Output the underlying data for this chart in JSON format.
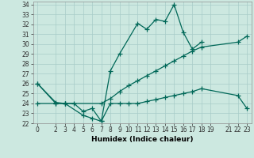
{
  "xlabel": "Humidex (Indice chaleur)",
  "bg_color": "#cce8e0",
  "grid_color": "#a8ccc8",
  "line_color": "#006858",
  "xlim": [
    -0.5,
    23.5
  ],
  "ylim": [
    22,
    34.3
  ],
  "yticks": [
    22,
    23,
    24,
    25,
    26,
    27,
    28,
    29,
    30,
    31,
    32,
    33,
    34
  ],
  "xticks": [
    0,
    2,
    3,
    4,
    5,
    6,
    7,
    8,
    9,
    10,
    11,
    12,
    13,
    14,
    15,
    16,
    17,
    18,
    19,
    21,
    22,
    23
  ],
  "line1_x": [
    0,
    2,
    3,
    5,
    6,
    7,
    8,
    9,
    11,
    12,
    13,
    14,
    15,
    16,
    17,
    18
  ],
  "line1_y": [
    26.0,
    24.0,
    24.0,
    22.8,
    22.5,
    22.2,
    27.3,
    29.0,
    32.1,
    31.5,
    32.5,
    32.3,
    34.0,
    31.2,
    29.5,
    30.2
  ],
  "line2_x": [
    0,
    2,
    3,
    7,
    8,
    9,
    10,
    11,
    12,
    13,
    14,
    15,
    16,
    17,
    18,
    22,
    23
  ],
  "line2_y": [
    26.0,
    24.1,
    24.0,
    24.0,
    24.5,
    25.2,
    25.8,
    26.3,
    26.8,
    27.3,
    27.8,
    28.3,
    28.8,
    29.3,
    29.7,
    30.2,
    30.8
  ],
  "line3_x": [
    0,
    2,
    3,
    4,
    5,
    6,
    7,
    8,
    9,
    10,
    11,
    12,
    13,
    14,
    15,
    16,
    17,
    18,
    22,
    23
  ],
  "line3_y": [
    24.0,
    24.0,
    24.0,
    24.0,
    23.2,
    23.5,
    22.2,
    24.0,
    24.0,
    24.0,
    24.0,
    24.2,
    24.4,
    24.6,
    24.8,
    25.0,
    25.2,
    25.5,
    24.8,
    23.5
  ],
  "marker": "+",
  "markersize": 4,
  "linewidth": 0.9,
  "tick_fontsize": 5.5,
  "label_fontsize": 6.5
}
